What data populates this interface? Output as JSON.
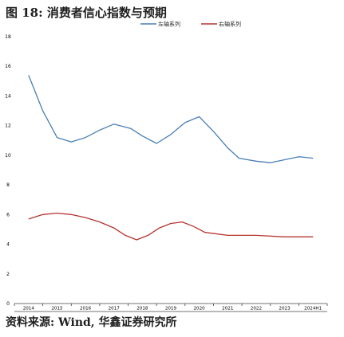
{
  "figure": {
    "title": "图 18: 消费者信心指数与预期",
    "source": "资料来源: Wind, 华鑫证券研究所"
  },
  "chart_data": {
    "type": "line",
    "x": [
      "2014",
      "2015",
      "2016",
      "2017",
      "2018",
      "2019",
      "2020",
      "2021",
      "2022",
      "2023",
      "2024H1"
    ],
    "ylim": [
      0,
      18
    ],
    "yticks": [
      0,
      2,
      4,
      6,
      8,
      10,
      12,
      14,
      16,
      18
    ],
    "legend_position": "top-center",
    "grid": false,
    "series": [
      {
        "name": "左轴系列",
        "color": "#4a7fb5",
        "points": [
          [
            0.0,
            15.4
          ],
          [
            0.5,
            13.0
          ],
          [
            1.0,
            11.2
          ],
          [
            1.5,
            10.9
          ],
          [
            2.0,
            11.2
          ],
          [
            2.5,
            11.7
          ],
          [
            3.0,
            12.1
          ],
          [
            3.6,
            11.8
          ],
          [
            4.0,
            11.3
          ],
          [
            4.5,
            10.8
          ],
          [
            5.0,
            11.4
          ],
          [
            5.5,
            12.2
          ],
          [
            6.0,
            12.6
          ],
          [
            6.5,
            11.6
          ],
          [
            7.0,
            10.5
          ],
          [
            7.4,
            9.8
          ],
          [
            8.0,
            9.6
          ],
          [
            8.5,
            9.5
          ],
          [
            9.0,
            9.7
          ],
          [
            9.5,
            9.9
          ],
          [
            10.0,
            9.8
          ]
        ]
      },
      {
        "name": "右轴系列",
        "color": "#b5342f",
        "points": [
          [
            0.0,
            5.7
          ],
          [
            0.5,
            6.0
          ],
          [
            1.0,
            6.1
          ],
          [
            1.5,
            6.0
          ],
          [
            2.0,
            5.8
          ],
          [
            2.5,
            5.5
          ],
          [
            3.0,
            5.1
          ],
          [
            3.4,
            4.6
          ],
          [
            3.8,
            4.3
          ],
          [
            4.2,
            4.6
          ],
          [
            4.6,
            5.1
          ],
          [
            5.0,
            5.4
          ],
          [
            5.4,
            5.5
          ],
          [
            5.8,
            5.2
          ],
          [
            6.2,
            4.8
          ],
          [
            7.0,
            4.6
          ],
          [
            8.0,
            4.6
          ],
          [
            9.0,
            4.5
          ],
          [
            10.0,
            4.5
          ]
        ]
      }
    ]
  }
}
